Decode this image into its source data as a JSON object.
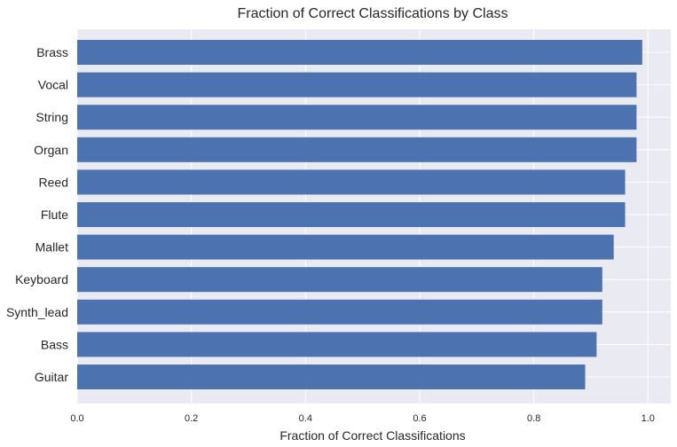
{
  "chart_data": {
    "type": "bar",
    "orientation": "horizontal",
    "title": "Fraction of Correct Classifications by Class",
    "xlabel": "Fraction of Correct Classifications",
    "ylabel": "",
    "categories": [
      "Brass",
      "Vocal",
      "String",
      "Organ",
      "Reed",
      "Flute",
      "Mallet",
      "Keyboard",
      "Synth_lead",
      "Bass",
      "Guitar"
    ],
    "values": [
      0.99,
      0.98,
      0.98,
      0.98,
      0.96,
      0.96,
      0.94,
      0.92,
      0.92,
      0.91,
      0.89
    ],
    "xlim": [
      0.0,
      1.04
    ],
    "xticks": [
      "0.0",
      "0.2",
      "0.4",
      "0.6",
      "0.8",
      "1.0"
    ],
    "grid": true,
    "bar_color": "#4C72B0",
    "background_color": "#EAEAF2",
    "grid_color": "#FFFFFF"
  }
}
